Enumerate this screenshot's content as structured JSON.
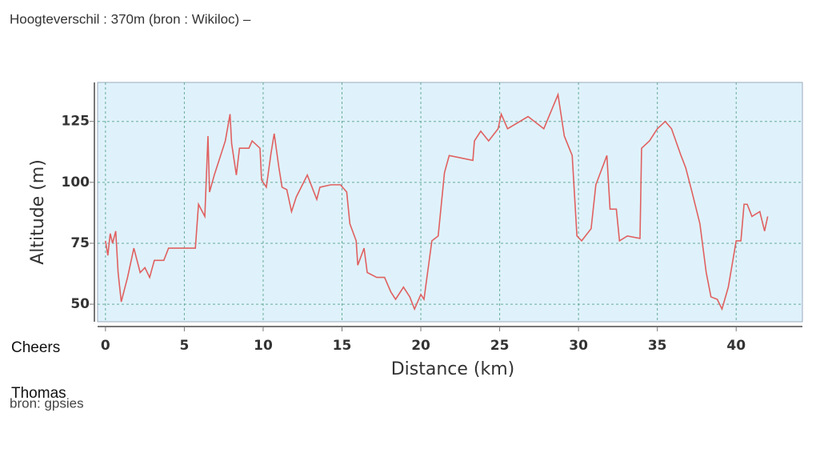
{
  "header": {
    "title": "Hoogteverschil : 370m (bron : Wikiloc) –"
  },
  "footer": {
    "cheers": "Cheers",
    "signature": "Thomas",
    "source": "bron: gpsies"
  },
  "chart_data": {
    "type": "line",
    "x_label": "Distance (km)",
    "y_label": "Altitude (m)",
    "x": [
      0,
      0.15,
      0.3,
      0.45,
      0.65,
      0.8,
      1.0,
      1.4,
      1.8,
      2.2,
      2.5,
      2.8,
      3.1,
      3.7,
      4.0,
      5.7,
      5.9,
      6.3,
      6.5,
      6.6,
      6.9,
      7.3,
      7.6,
      7.9,
      8.0,
      8.3,
      8.5,
      9.1,
      9.3,
      9.8,
      9.9,
      10.2,
      10.5,
      10.7,
      11.0,
      11.2,
      11.5,
      11.8,
      12.1,
      12.8,
      13.4,
      13.6,
      14.3,
      14.9,
      15.3,
      15.5,
      15.9,
      16.0,
      16.4,
      16.6,
      17.2,
      17.7,
      18.1,
      18.4,
      18.9,
      19.3,
      19.6,
      20.0,
      20.2,
      20.7,
      21.1,
      21.5,
      21.8,
      23.3,
      23.4,
      23.8,
      24.3,
      24.9,
      25.1,
      25.5,
      26.8,
      27.8,
      28.7,
      29.1,
      29.6,
      29.9,
      30.2,
      30.8,
      31.1,
      31.8,
      32.0,
      32.4,
      32.6,
      33.1,
      33.9,
      34.0,
      34.5,
      35.0,
      35.5,
      35.9,
      36.5,
      36.8,
      37.2,
      37.7,
      38.1,
      38.4,
      38.8,
      39.1,
      39.5,
      40.0,
      40.3,
      40.5,
      40.7,
      41.0,
      41.5,
      41.8,
      42.0
    ],
    "values": [
      76,
      70,
      79,
      75,
      80,
      63,
      51,
      61,
      73,
      63,
      65,
      61,
      68,
      68,
      73,
      73,
      91,
      86,
      119,
      96,
      103,
      111,
      117,
      128,
      116,
      103,
      114,
      114,
      117,
      114,
      101,
      98,
      112,
      120,
      106,
      98,
      97,
      88,
      94,
      103,
      93,
      98,
      99,
      99,
      96,
      83,
      76,
      66,
      73,
      63,
      61,
      61,
      55,
      52,
      57,
      53,
      48,
      54,
      52,
      76,
      78,
      104,
      111,
      109,
      117,
      121,
      117,
      122,
      128,
      122,
      127,
      122,
      136,
      119,
      111,
      78,
      76,
      81,
      99,
      111,
      89,
      89,
      76,
      78,
      77,
      114,
      117,
      122,
      125,
      122,
      111,
      106,
      96,
      83,
      63,
      53,
      52,
      48,
      57,
      76,
      76,
      91,
      91,
      86,
      88,
      80,
      86
    ],
    "color": "#e06060",
    "xlim": [
      -0.5,
      44.2
    ],
    "ylim": [
      42.8,
      141
    ],
    "xticks": [
      0,
      5,
      10,
      15,
      20,
      25,
      30,
      35,
      40
    ],
    "yticks": [
      50,
      75,
      100,
      125
    ],
    "grid": true
  }
}
